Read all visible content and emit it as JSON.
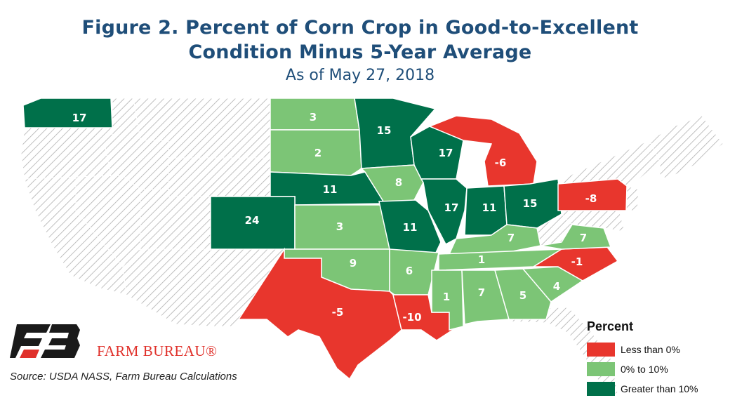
{
  "title_line1": "Figure 2. Percent of Corn Crop in Good-to-Excellent",
  "title_line2": "Condition Minus 5-Year Average",
  "subtitle": "As of May 27, 2018",
  "legend": {
    "title": "Percent",
    "items": [
      {
        "label": "Less than 0%",
        "color": "#e8362d"
      },
      {
        "label": "0% to 10%",
        "color": "#7cc576"
      },
      {
        "label": "Greater than 10%",
        "color": "#00704a"
      }
    ]
  },
  "colors": {
    "hatch": "#b0b0b0",
    "low": "#e8362d",
    "mid": "#7cc576",
    "high": "#00704a"
  },
  "brand": "FARM BUREAU®",
  "source": "Source: USDA NASS, Farm Bureau Calculations",
  "states": [
    {
      "id": "WA",
      "value": "17",
      "cat": "high"
    },
    {
      "id": "ND",
      "value": "3",
      "cat": "mid"
    },
    {
      "id": "SD",
      "value": "2",
      "cat": "mid"
    },
    {
      "id": "NE",
      "value": "11",
      "cat": "high"
    },
    {
      "id": "CO",
      "value": "24",
      "cat": "high"
    },
    {
      "id": "KS",
      "value": "3",
      "cat": "mid"
    },
    {
      "id": "OK",
      "value": "9",
      "cat": "mid"
    },
    {
      "id": "TX",
      "value": "-5",
      "cat": "low"
    },
    {
      "id": "MN",
      "value": "15",
      "cat": "high"
    },
    {
      "id": "IA",
      "value": "8",
      "cat": "mid"
    },
    {
      "id": "MO",
      "value": "11",
      "cat": "high"
    },
    {
      "id": "AR",
      "value": "6",
      "cat": "mid"
    },
    {
      "id": "LA",
      "value": "-10",
      "cat": "low"
    },
    {
      "id": "WI",
      "value": "17",
      "cat": "high"
    },
    {
      "id": "IL",
      "value": "17",
      "cat": "high"
    },
    {
      "id": "MI",
      "value": "-6",
      "cat": "low"
    },
    {
      "id": "IN",
      "value": "11",
      "cat": "high"
    },
    {
      "id": "OH",
      "value": "15",
      "cat": "high"
    },
    {
      "id": "KY",
      "value": "7",
      "cat": "mid"
    },
    {
      "id": "TN",
      "value": "1",
      "cat": "mid"
    },
    {
      "id": "MS",
      "value": "1",
      "cat": "mid"
    },
    {
      "id": "AL",
      "value": "7",
      "cat": "mid"
    },
    {
      "id": "GA",
      "value": "5",
      "cat": "mid"
    },
    {
      "id": "SC",
      "value": "4",
      "cat": "mid"
    },
    {
      "id": "NC",
      "value": "-1",
      "cat": "low"
    },
    {
      "id": "VA",
      "value": "7",
      "cat": "mid"
    },
    {
      "id": "PA",
      "value": "-8",
      "cat": "low"
    }
  ]
}
